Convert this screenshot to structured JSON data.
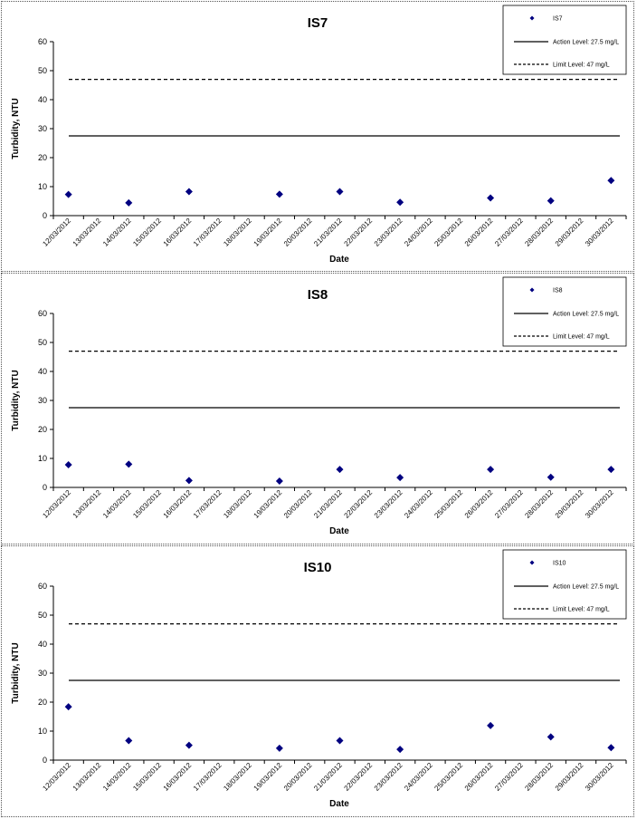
{
  "chart_data": [
    {
      "type": "scatter",
      "title": "IS7",
      "xlabel": "Date",
      "ylabel": "Turbidity, NTU",
      "ylim": [
        0,
        60
      ],
      "yticks": [
        0,
        10,
        20,
        30,
        40,
        50,
        60
      ],
      "x": [
        "12/03/2012",
        "13/03/2012",
        "14/03/2012",
        "15/03/2012",
        "16/03/2012",
        "17/03/2012",
        "18/03/2012",
        "19/03/2012",
        "20/03/2012",
        "21/03/2012",
        "22/03/2012",
        "23/03/2012",
        "24/03/2012",
        "25/03/2012",
        "26/03/2012",
        "27/03/2012",
        "28/03/2012",
        "29/03/2012",
        "30/03/2012"
      ],
      "series": [
        {
          "name": "IS7",
          "x": [
            "12/03/2012",
            "14/03/2012",
            "16/03/2012",
            "19/03/2012",
            "21/03/2012",
            "23/03/2012",
            "26/03/2012",
            "28/03/2012",
            "30/03/2012"
          ],
          "values": [
            7.3,
            4.4,
            8.3,
            7.4,
            8.3,
            4.6,
            6.1,
            5.1,
            12.1
          ],
          "color": "#000080"
        },
        {
          "name": "Action Level: 27.5 mg/L",
          "value": 27.5,
          "style": "solid"
        },
        {
          "name": "Limit Level: 47 mg/L",
          "value": 47,
          "style": "dashed"
        }
      ],
      "grid": false,
      "legend_position": "top-right"
    },
    {
      "type": "scatter",
      "title": "IS8",
      "xlabel": "Date",
      "ylabel": "Turbidity, NTU",
      "ylim": [
        0,
        60
      ],
      "yticks": [
        0,
        10,
        20,
        30,
        40,
        50,
        60
      ],
      "x": [
        "12/03/2012",
        "13/03/2012",
        "14/03/2012",
        "15/03/2012",
        "16/03/2012",
        "17/03/2012",
        "18/03/2012",
        "19/03/2012",
        "20/03/2012",
        "21/03/2012",
        "22/03/2012",
        "23/03/2012",
        "24/03/2012",
        "25/03/2012",
        "26/03/2012",
        "27/03/2012",
        "28/03/2012",
        "29/03/2012",
        "30/03/2012"
      ],
      "series": [
        {
          "name": "IS8",
          "x": [
            "12/03/2012",
            "14/03/2012",
            "16/03/2012",
            "19/03/2012",
            "21/03/2012",
            "23/03/2012",
            "26/03/2012",
            "28/03/2012",
            "30/03/2012"
          ],
          "values": [
            7.8,
            8.0,
            2.4,
            2.2,
            6.2,
            3.4,
            6.2,
            3.5,
            6.2
          ],
          "color": "#000080"
        },
        {
          "name": "Action Level: 27.5 mg/L",
          "value": 27.5,
          "style": "solid"
        },
        {
          "name": "Limit Level: 47 mg/L",
          "value": 47,
          "style": "dashed"
        }
      ],
      "grid": false,
      "legend_position": "top-right"
    },
    {
      "type": "scatter",
      "title": "IS10",
      "xlabel": "Date",
      "ylabel": "Turbidity, NTU",
      "ylim": [
        0,
        60
      ],
      "yticks": [
        0,
        10,
        20,
        30,
        40,
        50,
        60
      ],
      "x": [
        "12/03/2012",
        "13/03/2012",
        "14/03/2012",
        "15/03/2012",
        "16/03/2012",
        "17/03/2012",
        "18/03/2012",
        "19/03/2012",
        "20/03/2012",
        "21/03/2012",
        "22/03/2012",
        "23/03/2012",
        "24/03/2012",
        "25/03/2012",
        "26/03/2012",
        "27/03/2012",
        "28/03/2012",
        "29/03/2012",
        "30/03/2012"
      ],
      "series": [
        {
          "name": "IS10",
          "x": [
            "12/03/2012",
            "14/03/2012",
            "16/03/2012",
            "19/03/2012",
            "21/03/2012",
            "23/03/2012",
            "26/03/2012",
            "28/03/2012",
            "30/03/2012"
          ],
          "values": [
            18.4,
            6.7,
            5.1,
            4.1,
            6.7,
            3.7,
            11.9,
            8.0,
            4.3
          ],
          "color": "#000080"
        },
        {
          "name": "Action Level: 27.5 mg/L",
          "value": 27.5,
          "style": "solid"
        },
        {
          "name": "Limit Level: 47 mg/L",
          "value": 47,
          "style": "dashed"
        }
      ],
      "grid": false,
      "legend_position": "top-right"
    }
  ]
}
